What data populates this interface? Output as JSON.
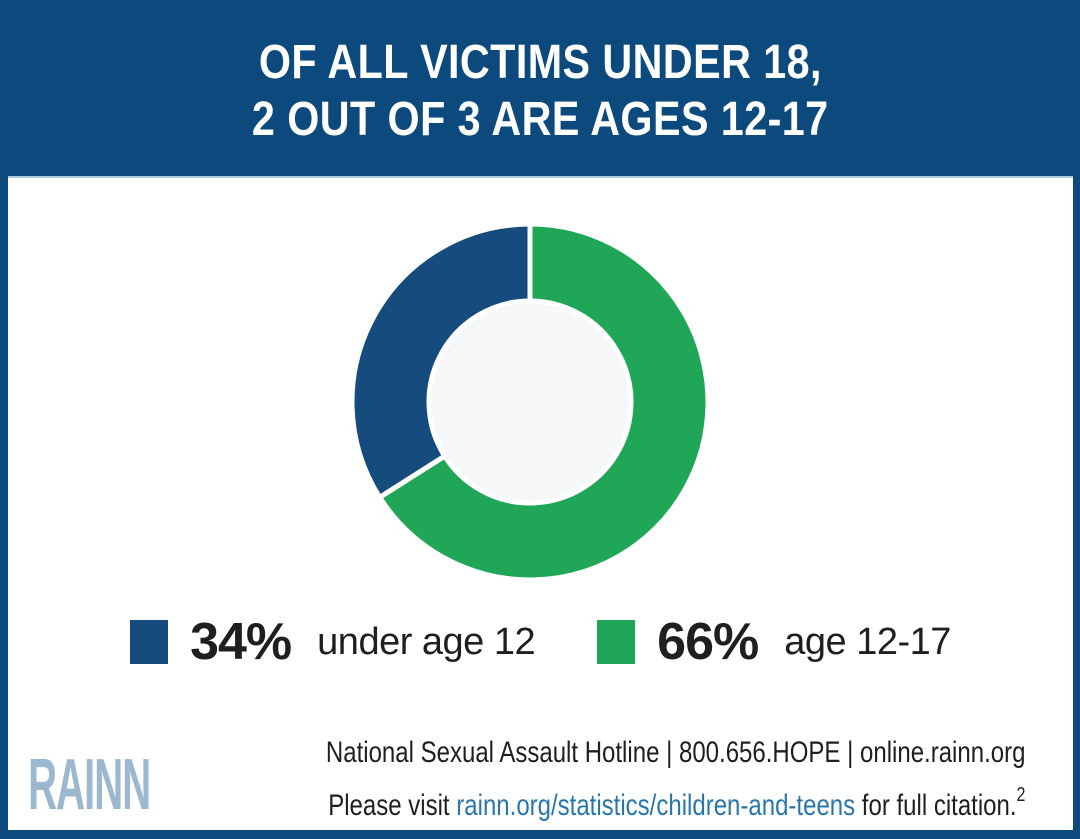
{
  "header": {
    "title_line1": "OF ALL VICTIMS UNDER 18,",
    "title_line2": "2 OUT OF 3 ARE AGES 12-17"
  },
  "chart_data": {
    "type": "pie",
    "subtype": "donut",
    "title": "OF ALL VICTIMS UNDER 18, 2 OUT OF 3 ARE AGES 12-17",
    "categories": [
      "under age 12",
      "age 12-17"
    ],
    "values": [
      34,
      66
    ],
    "slices": [
      {
        "label": "under age 12",
        "value": 34,
        "pct_label": "34%",
        "color": "#154B7D"
      },
      {
        "label": "age 12-17",
        "value": 66,
        "pct_label": "66%",
        "color": "#1FA656"
      }
    ],
    "start_angle_deg": 237.6,
    "legend_position": "bottom",
    "hole_color": "#F5F7F9",
    "separator_color": "#FFFFFF"
  },
  "footer": {
    "hotline_line": "National Sexual Assault Hotline | 800.656.HOPE | online.rainn.org",
    "citation_prefix": "Please visit ",
    "citation_link": "rainn.org/statistics/children-and-teens",
    "citation_suffix": " for full citation.",
    "citation_superscript": "2",
    "logo_text": "RAINN"
  },
  "colors": {
    "banner_blue": "#0C4A7E",
    "card_white": "#FFFFFF",
    "slice_blue": "#154B7D",
    "slice_green": "#1FA656",
    "text_black": "#1F1F1F",
    "link_blue": "#2976AB",
    "logo_blue": "#9CB8CE"
  }
}
